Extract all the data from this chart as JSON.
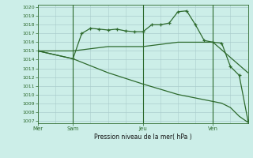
{
  "bg_color": "#cceee8",
  "grid_color": "#aacccc",
  "line_color": "#2d6a2d",
  "xlabel": "Pression niveau de la mer( hPa )",
  "ylim": [
    1007,
    1020
  ],
  "yticks": [
    1007,
    1008,
    1009,
    1010,
    1011,
    1012,
    1013,
    1014,
    1015,
    1016,
    1017,
    1018,
    1019,
    1020
  ],
  "day_vline_positions": [
    4,
    12,
    20
  ],
  "xtick_positions": [
    0,
    4,
    12,
    20
  ],
  "xtick_labels": [
    "Mer",
    "Sam",
    "Jeu",
    "Ven"
  ],
  "line1_x": [
    0,
    4,
    5,
    6,
    7,
    8,
    9,
    10,
    11,
    12,
    13,
    14,
    15,
    16,
    17,
    18,
    19,
    20,
    21,
    22,
    23,
    24
  ],
  "line1_y": [
    1015.0,
    1014.1,
    1017.0,
    1017.6,
    1017.5,
    1017.4,
    1017.5,
    1017.3,
    1017.2,
    1017.2,
    1018.0,
    1018.0,
    1018.2,
    1019.5,
    1019.6,
    1018.0,
    1016.2,
    1016.0,
    1015.9,
    1013.2,
    1012.2,
    1007.0
  ],
  "line2_x": [
    0,
    4,
    8,
    12,
    16,
    20,
    24
  ],
  "line2_y": [
    1015.0,
    1015.0,
    1015.5,
    1015.5,
    1016.0,
    1016.0,
    1012.5
  ],
  "line3_x": [
    0,
    4,
    8,
    12,
    16,
    20,
    21,
    22,
    23,
    24
  ],
  "line3_y": [
    1015.0,
    1014.1,
    1012.5,
    1011.2,
    1010.0,
    1009.2,
    1009.0,
    1008.5,
    1007.5,
    1006.8
  ]
}
